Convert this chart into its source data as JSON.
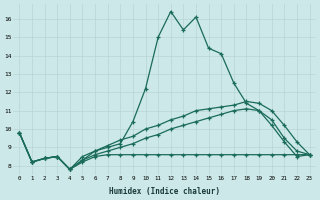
{
  "xlabel": "Humidex (Indice chaleur)",
  "background_color": "#cce8e8",
  "line_color": "#1a6b5a",
  "grid_color": "#b8d4d4",
  "xlim": [
    -0.5,
    23.5
  ],
  "ylim": [
    7.5,
    16.8
  ],
  "xticks": [
    0,
    1,
    2,
    3,
    4,
    5,
    6,
    7,
    8,
    9,
    10,
    11,
    12,
    13,
    14,
    15,
    16,
    17,
    18,
    19,
    20,
    21,
    22,
    23
  ],
  "yticks": [
    8,
    9,
    10,
    11,
    12,
    13,
    14,
    15,
    16
  ],
  "line_main_x": [
    0,
    1,
    2,
    3,
    4,
    5,
    6,
    7,
    8,
    9,
    10,
    11,
    12,
    13,
    14,
    15,
    16,
    17,
    18,
    19,
    20,
    21,
    22,
    23
  ],
  "line_main_y": [
    9.8,
    8.2,
    8.4,
    8.5,
    7.8,
    8.3,
    8.8,
    9.0,
    9.2,
    10.4,
    12.2,
    15.0,
    16.4,
    15.4,
    16.1,
    14.4,
    14.1,
    12.5,
    11.4,
    11.0,
    10.2,
    9.3,
    8.5,
    8.6
  ],
  "line_diag1_x": [
    0,
    1,
    2,
    3,
    4,
    5,
    6,
    7,
    8,
    9,
    10,
    11,
    12,
    13,
    14,
    15,
    16,
    17,
    18,
    19,
    20,
    21,
    22,
    23
  ],
  "line_diag1_y": [
    9.8,
    8.2,
    8.4,
    8.5,
    7.8,
    8.5,
    8.8,
    9.1,
    9.4,
    9.6,
    10.0,
    10.2,
    10.5,
    10.7,
    11.0,
    11.1,
    11.2,
    11.3,
    11.5,
    11.4,
    11.0,
    10.2,
    9.3,
    8.6
  ],
  "line_diag2_x": [
    0,
    1,
    2,
    3,
    4,
    5,
    6,
    7,
    8,
    9,
    10,
    11,
    12,
    13,
    14,
    15,
    16,
    17,
    18,
    19,
    20,
    21,
    22,
    23
  ],
  "line_diag2_y": [
    9.8,
    8.2,
    8.4,
    8.5,
    7.8,
    8.3,
    8.6,
    8.8,
    9.0,
    9.2,
    9.5,
    9.7,
    10.0,
    10.2,
    10.4,
    10.6,
    10.8,
    11.0,
    11.1,
    11.0,
    10.5,
    9.5,
    8.8,
    8.6
  ],
  "line_flat_x": [
    0,
    1,
    2,
    3,
    4,
    5,
    6,
    7,
    8,
    9,
    10,
    11,
    12,
    13,
    14,
    15,
    16,
    17,
    18,
    19,
    20,
    21,
    22,
    23
  ],
  "line_flat_y": [
    9.8,
    8.2,
    8.4,
    8.5,
    7.8,
    8.2,
    8.5,
    8.6,
    8.6,
    8.6,
    8.6,
    8.6,
    8.6,
    8.6,
    8.6,
    8.6,
    8.6,
    8.6,
    8.6,
    8.6,
    8.6,
    8.6,
    8.6,
    8.6
  ]
}
